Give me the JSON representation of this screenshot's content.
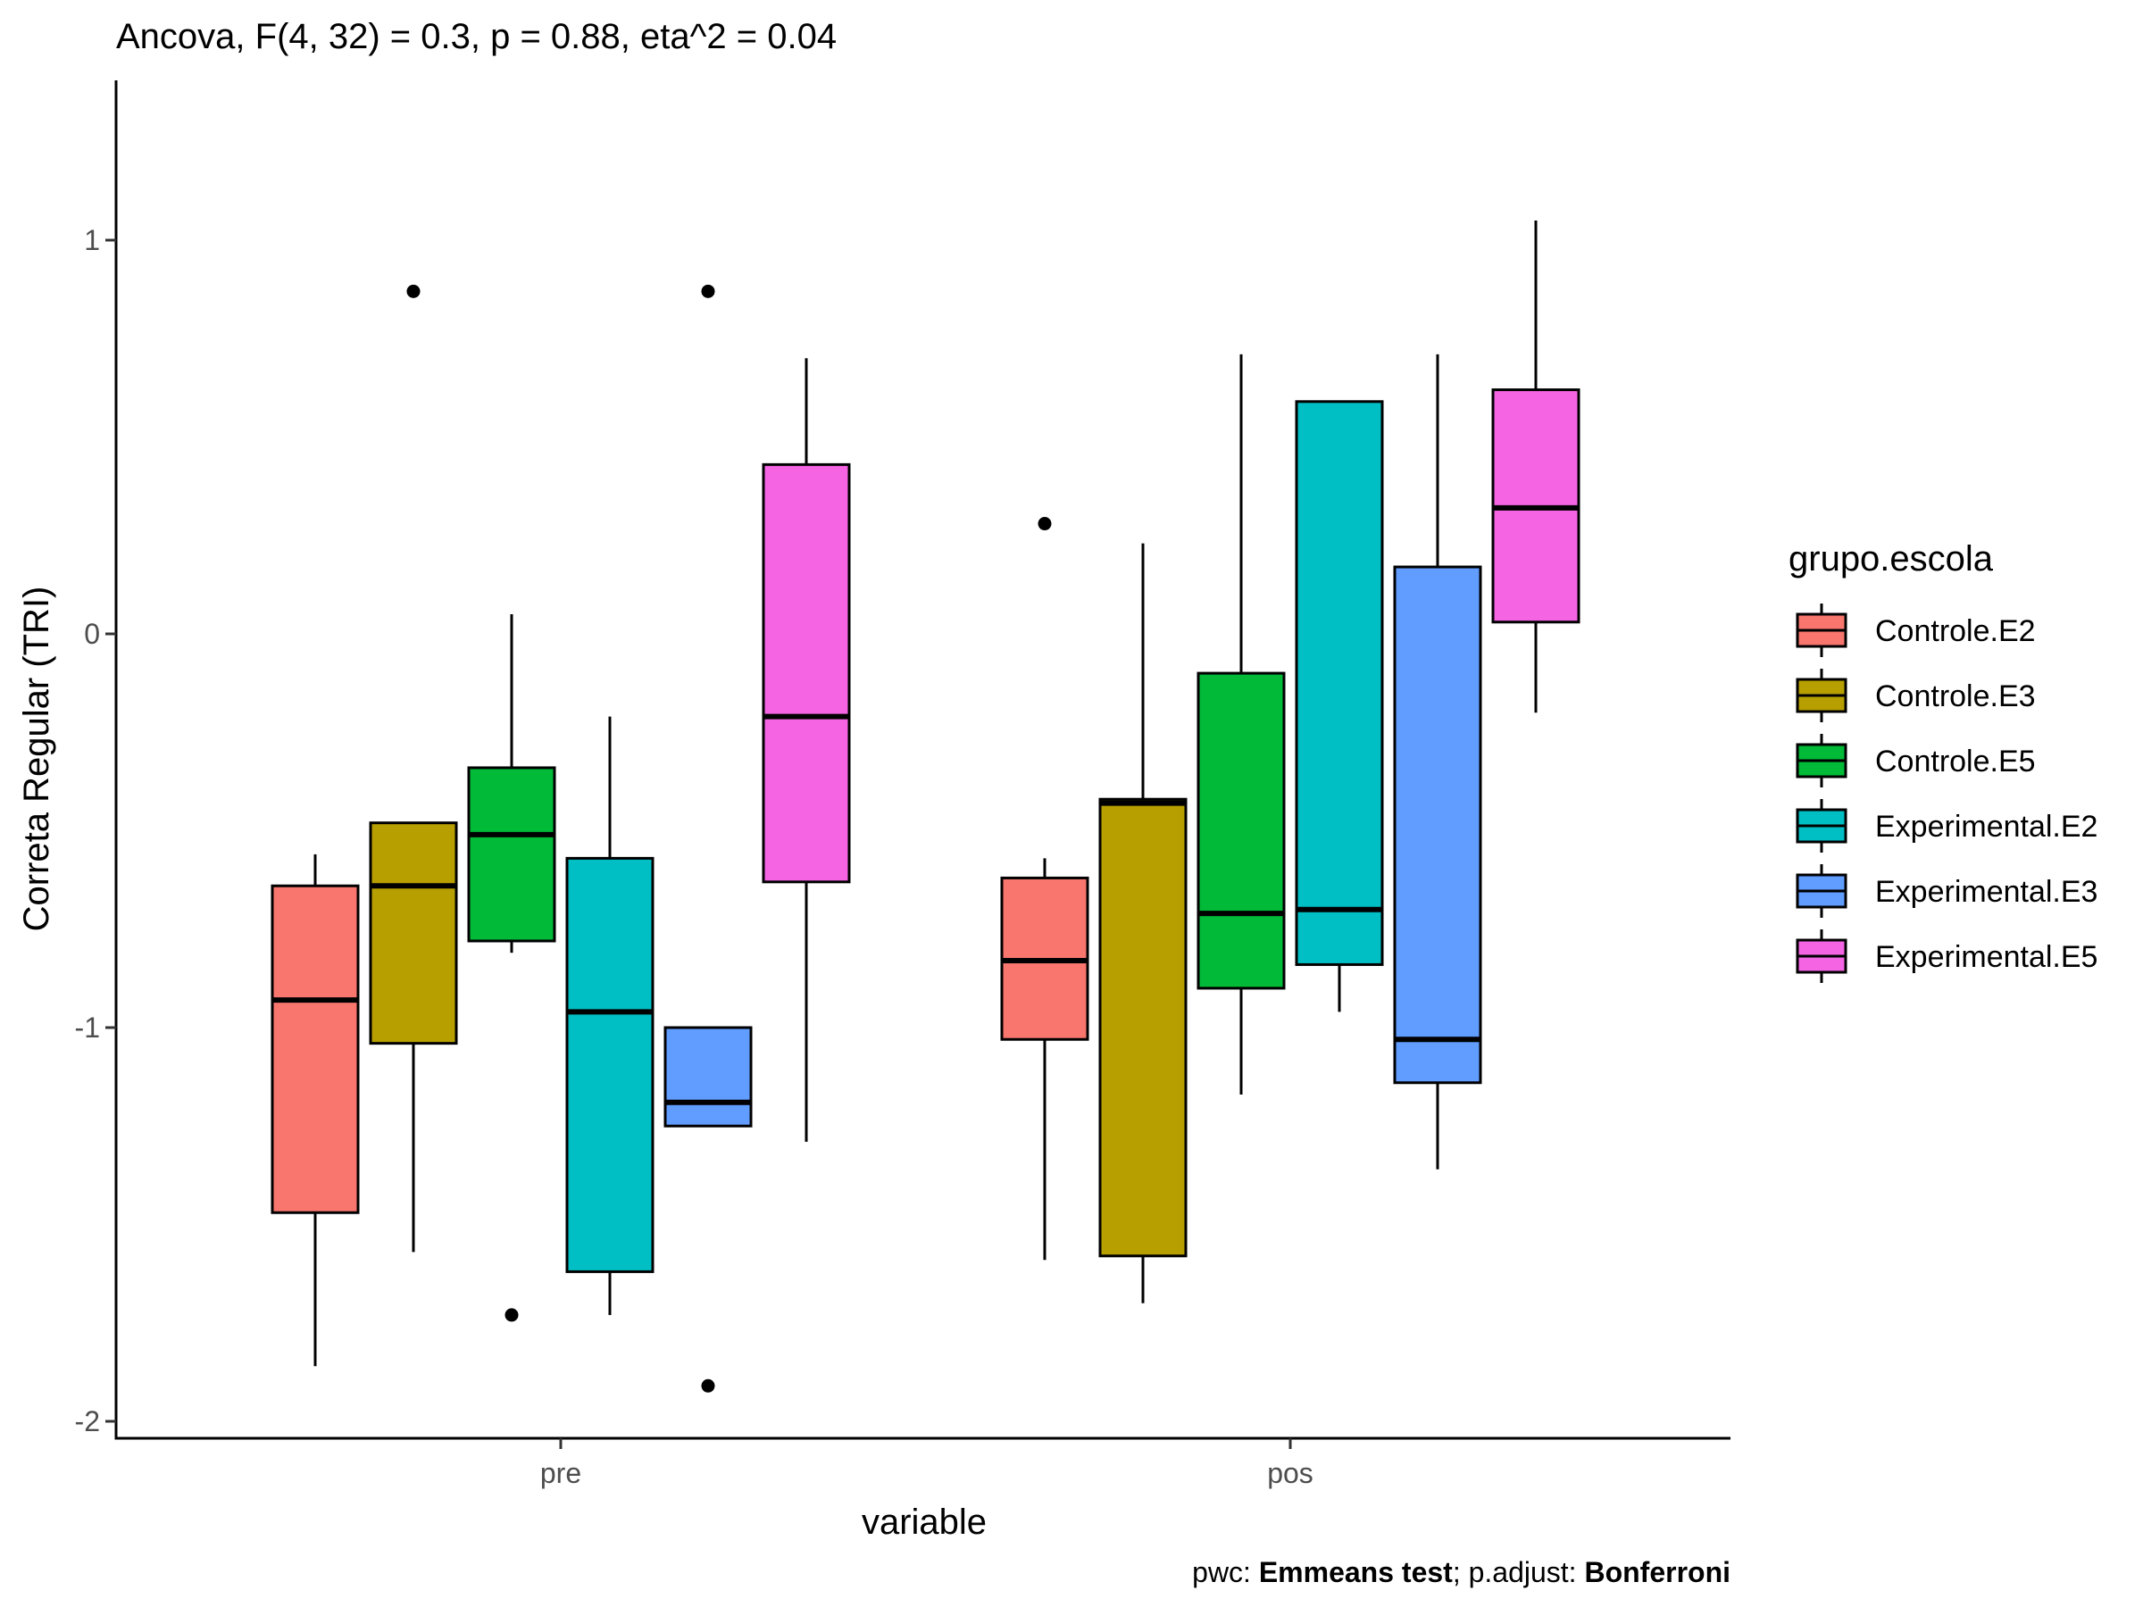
{
  "chart_data": {
    "type": "boxplot",
    "title": "Ancova, F(4, 32) = 0.3, p = 0.88, eta^2 = 0.04",
    "xlabel": "variable",
    "ylabel": "Correta Regular (TRI)",
    "ylim": [
      -2.06,
      1.4
    ],
    "y_ticks": [
      -2,
      -1,
      0,
      1
    ],
    "y_tick_labels": [
      "-2",
      "-1",
      "0",
      "1"
    ],
    "categories": [
      "pre",
      "pos"
    ],
    "grid": false,
    "legend": {
      "title": "grupo.escola",
      "position": "right"
    },
    "caption": {
      "prefix1": "pwc: ",
      "bold1": "Emmeans test",
      "prefix2": "; p.adjust: ",
      "bold2": "Bonferroni"
    },
    "series": [
      {
        "name": "Controle.E2",
        "color": "#F8766D",
        "boxes": [
          {
            "min": -1.86,
            "q1": -1.47,
            "median": -0.93,
            "q3": -0.64,
            "max": -0.56,
            "outliers": []
          },
          {
            "min": -1.59,
            "q1": -1.03,
            "median": -0.83,
            "q3": -0.62,
            "max": -0.57,
            "outliers": [
              0.28
            ]
          }
        ]
      },
      {
        "name": "Controle.E3",
        "color": "#B79F00",
        "boxes": [
          {
            "min": -1.57,
            "q1": -1.04,
            "median": -0.64,
            "q3": -0.48,
            "max": -0.48,
            "outliers": [
              0.87
            ]
          },
          {
            "min": -1.7,
            "q1": -1.58,
            "median": -0.43,
            "q3": -0.42,
            "max": 0.23,
            "outliers": []
          }
        ]
      },
      {
        "name": "Controle.E5",
        "color": "#00BA38",
        "boxes": [
          {
            "min": -0.81,
            "q1": -0.78,
            "median": -0.51,
            "q3": -0.34,
            "max": 0.05,
            "outliers": [
              -1.73
            ]
          },
          {
            "min": -1.17,
            "q1": -0.9,
            "median": -0.71,
            "q3": -0.1,
            "max": 0.71,
            "outliers": []
          }
        ]
      },
      {
        "name": "Experimental.E2",
        "color": "#00BFC4",
        "boxes": [
          {
            "min": -1.73,
            "q1": -1.62,
            "median": -0.96,
            "q3": -0.57,
            "max": -0.21,
            "outliers": []
          },
          {
            "min": -0.96,
            "q1": -0.84,
            "median": -0.7,
            "q3": 0.59,
            "max": 0.59,
            "outliers": []
          }
        ]
      },
      {
        "name": "Experimental.E3",
        "color": "#619CFF",
        "boxes": [
          {
            "min": -1.25,
            "q1": -1.25,
            "median": -1.19,
            "q3": -1.0,
            "max": -1.0,
            "outliers": [
              0.87,
              -1.91
            ]
          },
          {
            "min": -1.36,
            "q1": -1.14,
            "median": -1.03,
            "q3": 0.17,
            "max": 0.71,
            "outliers": []
          }
        ]
      },
      {
        "name": "Experimental.E5",
        "color": "#F564E3",
        "boxes": [
          {
            "min": -1.29,
            "q1": -0.63,
            "median": -0.21,
            "q3": 0.43,
            "max": 0.7,
            "outliers": []
          },
          {
            "min": -0.2,
            "q1": 0.03,
            "median": 0.32,
            "q3": 0.62,
            "max": 1.05,
            "outliers": []
          }
        ]
      }
    ]
  }
}
